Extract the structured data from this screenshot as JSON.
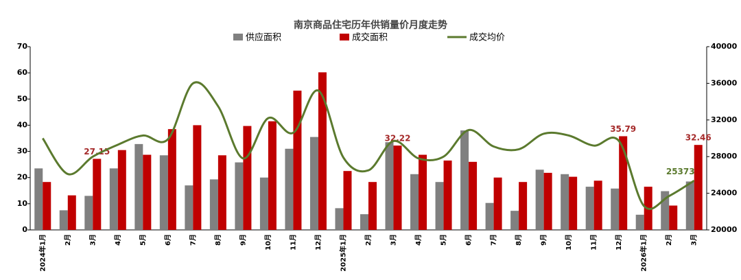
{
  "chart_data": {
    "type": "bar",
    "title": "南京商品住宅历年供销量价月度走势",
    "categories": [
      "2024年1月",
      "2月",
      "3月",
      "4月",
      "5月",
      "6月",
      "7月",
      "8月",
      "9月",
      "10月",
      "11月",
      "12月",
      "2025年1月",
      "2月",
      "3月",
      "4月",
      "5月",
      "6月",
      "7月",
      "8月",
      "9月",
      "10月",
      "11月",
      "12月",
      "2026年1月",
      "2月",
      "3月"
    ],
    "series": [
      {
        "name": "供应面积",
        "type": "bar",
        "color": "#808080",
        "values": [
          23.5,
          7.5,
          13,
          23.5,
          32.8,
          28.5,
          17,
          19.3,
          25.8,
          20,
          31,
          35.5,
          8.3,
          6,
          33.5,
          21.3,
          18.3,
          38,
          10.3,
          7.3,
          23,
          21.3,
          16.5,
          15.8,
          5.8,
          14.8,
          18.5
        ]
      },
      {
        "name": "成交面积",
        "type": "bar",
        "color": "#c00000",
        "values": [
          18.3,
          13.2,
          27.15,
          30.5,
          28.7,
          38.5,
          40,
          28.5,
          39.7,
          41.5,
          53.2,
          60.2,
          22.5,
          18.3,
          32.22,
          28.7,
          26.5,
          26,
          20,
          18.3,
          21.8,
          20.3,
          18.8,
          35.79,
          16.5,
          9.3,
          32.46
        ],
        "value_labels": [
          null,
          null,
          "27.15",
          null,
          null,
          null,
          null,
          null,
          null,
          null,
          null,
          null,
          null,
          null,
          "32.22",
          null,
          null,
          null,
          null,
          null,
          null,
          null,
          null,
          "35.79",
          null,
          null,
          "32.46"
        ],
        "label_color": "#a52a2a"
      },
      {
        "name": "成交均价",
        "type": "line",
        "axis": "y2",
        "color": "#5b7a2e",
        "values": [
          30000,
          26100,
          28000,
          29300,
          30300,
          29900,
          36000,
          33500,
          27800,
          32200,
          30600,
          35200,
          27900,
          26500,
          29700,
          27800,
          28000,
          30900,
          29100,
          28800,
          30500,
          30300,
          29200,
          29700,
          22600,
          23700,
          25373
        ],
        "value_labels": [
          null,
          null,
          null,
          null,
          null,
          null,
          null,
          null,
          null,
          null,
          null,
          null,
          null,
          null,
          null,
          null,
          null,
          null,
          null,
          null,
          null,
          null,
          null,
          null,
          null,
          null,
          "25373"
        ],
        "label_color": "#5b7a2e"
      }
    ],
    "ylim": [
      0,
      70
    ],
    "yticks": [
      0,
      10,
      20,
      30,
      40,
      50,
      60,
      70
    ],
    "y2lim": [
      20000,
      40000
    ],
    "y2ticks": [
      20000,
      24000,
      28000,
      32000,
      36000,
      40000
    ]
  }
}
